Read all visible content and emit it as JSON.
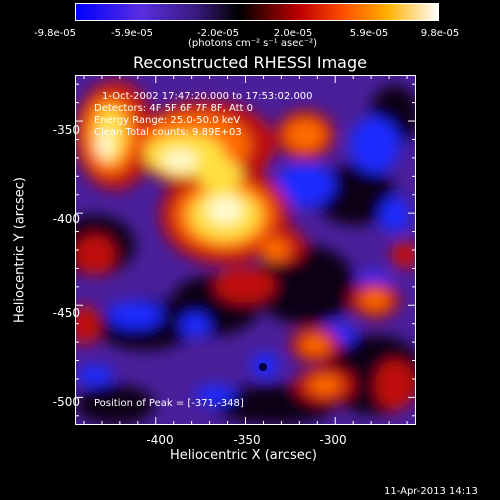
{
  "colorbar": {
    "ticks": [
      "-9.8e-05",
      "-5.9e-05",
      "-2.0e-05",
      "2.0e-05",
      "5.9e-05",
      "9.8e-05"
    ],
    "unit_label": "(photons cm⁻² s⁻¹ asec⁻²)",
    "colors": [
      "#0000ff",
      "#6a2dcc",
      "#000000",
      "#c00000",
      "#ff6000",
      "#ffff00",
      "#ffffff"
    ]
  },
  "chart_data": {
    "type": "heatmap",
    "title": "Reconstructed RHESSI Image",
    "xlabel": "Heliocentric X (arcsec)",
    "ylabel": "Heliocentric Y (arcsec)",
    "xlim": [
      -445,
      -255
    ],
    "ylim": [
      -515,
      -325
    ],
    "xticks": [
      "-400",
      "-350",
      "-300"
    ],
    "yticks": [
      "-350",
      "-400",
      "-450",
      "-500"
    ],
    "zlim": [
      -9.8e-05,
      9.8e-05
    ],
    "peak": {
      "x": -371,
      "y": -348
    },
    "annotations": [
      "1-Oct-2002 17:47:20.000 to 17:53:02.000",
      "Detectors: 4F 5F 6F 7F 8F, Att 0",
      "Energy Range: 25.0-50.0 keV",
      "Clean    Total counts: 9.89E+03"
    ],
    "peak_label": "Position of Peak = [-371,-348]"
  },
  "footer": {
    "timestamp": "11-Apr-2013 14:13"
  }
}
